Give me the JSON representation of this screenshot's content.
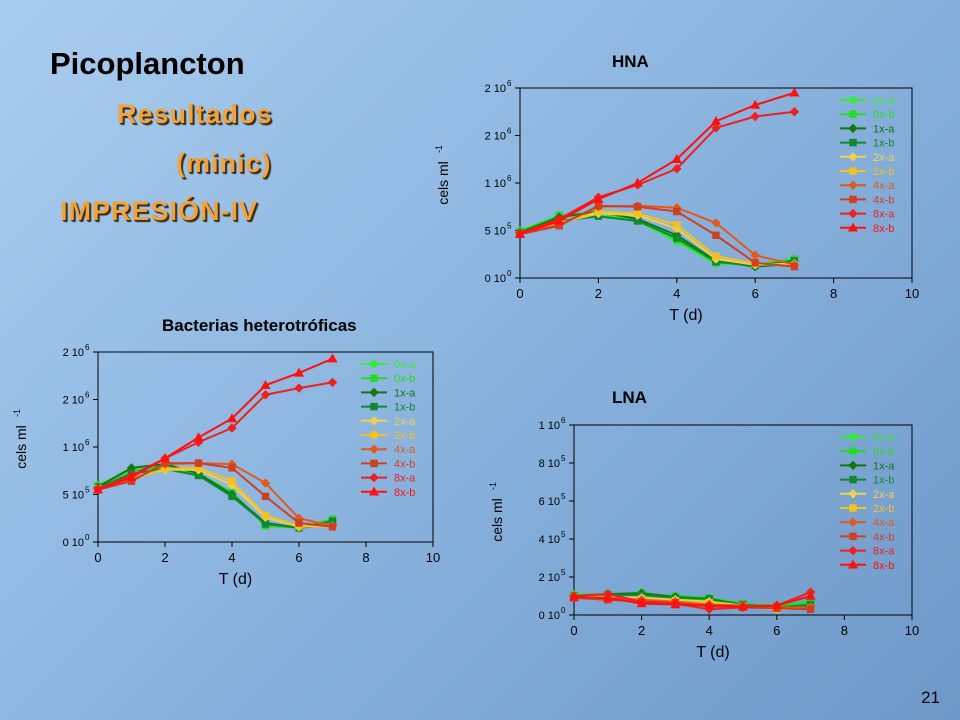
{
  "slide": {
    "title": "Picoplancton",
    "subtitle_1": "Resultados",
    "subtitle_2": "(minic)",
    "subtitle_3": "IMPRESIÓN-IV",
    "page_number": "21"
  },
  "chart_data": [
    {
      "id": "hna",
      "type": "line",
      "title": "HNA",
      "xlabel": "T (d)",
      "ylabel": "cels ml",
      "ylabel_sup": "-1",
      "xlim": [
        0,
        10
      ],
      "ylim": [
        0,
        2000000
      ],
      "xticks": [
        0,
        2,
        4,
        6,
        8,
        10
      ],
      "yticks": [
        {
          "v": 0,
          "m": "0 10",
          "e": "0"
        },
        {
          "v": 500000,
          "m": "5 10",
          "e": "5"
        },
        {
          "v": 1000000,
          "m": "1 10",
          "e": "6"
        },
        {
          "v": 1500000,
          "m": "2 10",
          "e": "6"
        },
        {
          "v": 2000000,
          "m": "2 10",
          "e": "6"
        }
      ],
      "legend_position": "top-right",
      "series": [
        {
          "name": "0x-a",
          "color": "#33ee33",
          "marker": "circle",
          "x": [
            0,
            1,
            2,
            3,
            4,
            5,
            6,
            7
          ],
          "y": [
            500000,
            650000,
            680000,
            600000,
            380000,
            150000,
            150000,
            160000
          ]
        },
        {
          "name": "0x-b",
          "color": "#22dd22",
          "marker": "square",
          "x": [
            0,
            1,
            2,
            3,
            4,
            5,
            6,
            7
          ],
          "y": [
            490000,
            660000,
            690000,
            620000,
            400000,
            160000,
            140000,
            200000
          ]
        },
        {
          "name": "1x-a",
          "color": "#117711",
          "marker": "diamond",
          "x": [
            0,
            1,
            2,
            3,
            4,
            5,
            6,
            7
          ],
          "y": [
            480000,
            640000,
            700000,
            620000,
            450000,
            180000,
            120000,
            150000
          ]
        },
        {
          "name": "1x-b",
          "color": "#118833",
          "marker": "square",
          "x": [
            0,
            1,
            2,
            3,
            4,
            5,
            6,
            7
          ],
          "y": [
            470000,
            600000,
            650000,
            600000,
            420000,
            170000,
            130000,
            180000
          ]
        },
        {
          "name": "2x-a",
          "color": "#f0d050",
          "marker": "diamond",
          "x": [
            0,
            1,
            2,
            3,
            4,
            5,
            6,
            7
          ],
          "y": [
            470000,
            580000,
            680000,
            660000,
            520000,
            200000,
            140000,
            150000
          ]
        },
        {
          "name": "2x-b",
          "color": "#f5c020",
          "marker": "square",
          "x": [
            0,
            1,
            2,
            3,
            4,
            5,
            6,
            7
          ],
          "y": [
            460000,
            570000,
            700000,
            680000,
            560000,
            230000,
            150000,
            130000
          ]
        },
        {
          "name": "4x-a",
          "color": "#e05a20",
          "marker": "diamond",
          "x": [
            0,
            1,
            2,
            3,
            4,
            5,
            6,
            7
          ],
          "y": [
            470000,
            560000,
            750000,
            760000,
            740000,
            580000,
            240000,
            140000
          ]
        },
        {
          "name": "4x-b",
          "color": "#d04020",
          "marker": "square",
          "x": [
            0,
            1,
            2,
            3,
            4,
            5,
            6,
            7
          ],
          "y": [
            460000,
            550000,
            760000,
            750000,
            700000,
            450000,
            160000,
            120000
          ]
        },
        {
          "name": "8x-a",
          "color": "#ee2020",
          "marker": "diamond",
          "x": [
            0,
            1,
            2,
            3,
            4,
            5,
            6,
            7
          ],
          "y": [
            470000,
            620000,
            850000,
            980000,
            1150000,
            1580000,
            1700000,
            1750000
          ]
        },
        {
          "name": "8x-b",
          "color": "#ff1010",
          "marker": "triangle",
          "x": [
            0,
            1,
            2,
            3,
            4,
            5,
            6,
            7
          ],
          "y": [
            460000,
            600000,
            830000,
            1000000,
            1250000,
            1650000,
            1820000,
            1950000
          ]
        }
      ]
    },
    {
      "id": "bact",
      "type": "line",
      "title": "Bacterias heterotróficas",
      "xlabel": "T (d)",
      "ylabel": "cels ml",
      "ylabel_sup": "-1",
      "xlim": [
        0,
        10
      ],
      "ylim": [
        0,
        2000000
      ],
      "xticks": [
        0,
        2,
        4,
        6,
        8,
        10
      ],
      "yticks": [
        {
          "v": 0,
          "m": "0 10",
          "e": "0"
        },
        {
          "v": 500000,
          "m": "5 10",
          "e": "5"
        },
        {
          "v": 1000000,
          "m": "1 10",
          "e": "6"
        },
        {
          "v": 1500000,
          "m": "2 10",
          "e": "6"
        },
        {
          "v": 2000000,
          "m": "2 10",
          "e": "6"
        }
      ],
      "legend_position": "top-right",
      "series": [
        {
          "name": "0x-a",
          "color": "#33ee33",
          "marker": "circle",
          "x": [
            0,
            1,
            2,
            3,
            4,
            5,
            6,
            7
          ],
          "y": [
            600000,
            760000,
            780000,
            700000,
            500000,
            180000,
            160000,
            200000
          ]
        },
        {
          "name": "0x-b",
          "color": "#22dd22",
          "marker": "square",
          "x": [
            0,
            1,
            2,
            3,
            4,
            5,
            6,
            7
          ],
          "y": [
            590000,
            750000,
            800000,
            720000,
            520000,
            170000,
            150000,
            240000
          ]
        },
        {
          "name": "1x-a",
          "color": "#117711",
          "marker": "diamond",
          "x": [
            0,
            1,
            2,
            3,
            4,
            5,
            6,
            7
          ],
          "y": [
            580000,
            780000,
            820000,
            720000,
            500000,
            200000,
            150000,
            180000
          ]
        },
        {
          "name": "1x-b",
          "color": "#118833",
          "marker": "square",
          "x": [
            0,
            1,
            2,
            3,
            4,
            5,
            6,
            7
          ],
          "y": [
            570000,
            720000,
            770000,
            700000,
            480000,
            190000,
            150000,
            220000
          ]
        },
        {
          "name": "2x-a",
          "color": "#f0d050",
          "marker": "diamond",
          "x": [
            0,
            1,
            2,
            3,
            4,
            5,
            6,
            7
          ],
          "y": [
            560000,
            680000,
            760000,
            760000,
            600000,
            260000,
            160000,
            170000
          ]
        },
        {
          "name": "2x-b",
          "color": "#f5c020",
          "marker": "square",
          "x": [
            0,
            1,
            2,
            3,
            4,
            5,
            6,
            7
          ],
          "y": [
            560000,
            660000,
            770000,
            780000,
            640000,
            280000,
            170000,
            160000
          ]
        },
        {
          "name": "4x-a",
          "color": "#e05a20",
          "marker": "diamond",
          "x": [
            0,
            1,
            2,
            3,
            4,
            5,
            6,
            7
          ],
          "y": [
            560000,
            650000,
            820000,
            830000,
            820000,
            620000,
            250000,
            170000
          ]
        },
        {
          "name": "4x-b",
          "color": "#d04020",
          "marker": "square",
          "x": [
            0,
            1,
            2,
            3,
            4,
            5,
            6,
            7
          ],
          "y": [
            550000,
            640000,
            830000,
            830000,
            780000,
            480000,
            200000,
            160000
          ]
        },
        {
          "name": "8x-a",
          "color": "#ee2020",
          "marker": "diamond",
          "x": [
            0,
            1,
            2,
            3,
            4,
            5,
            6,
            7
          ],
          "y": [
            560000,
            700000,
            880000,
            1050000,
            1200000,
            1550000,
            1620000,
            1680000
          ]
        },
        {
          "name": "8x-b",
          "color": "#ff1010",
          "marker": "triangle",
          "x": [
            0,
            1,
            2,
            3,
            4,
            5,
            6,
            7
          ],
          "y": [
            550000,
            680000,
            880000,
            1100000,
            1300000,
            1650000,
            1780000,
            1930000
          ]
        }
      ]
    },
    {
      "id": "lna",
      "type": "line",
      "title": "LNA",
      "xlabel": "T (d)",
      "ylabel": "cels ml",
      "ylabel_sup": "-1",
      "xlim": [
        0,
        10
      ],
      "ylim": [
        0,
        1000000
      ],
      "xticks": [
        0,
        2,
        4,
        6,
        8,
        10
      ],
      "yticks": [
        {
          "v": 0,
          "m": "0 10",
          "e": "0"
        },
        {
          "v": 200000,
          "m": "2 10",
          "e": "5"
        },
        {
          "v": 400000,
          "m": "4 10",
          "e": "5"
        },
        {
          "v": 600000,
          "m": "6 10",
          "e": "5"
        },
        {
          "v": 800000,
          "m": "8 10",
          "e": "5"
        },
        {
          "v": 1000000,
          "m": "1 10",
          "e": "6"
        }
      ],
      "legend_position": "top-right",
      "series": [
        {
          "name": "0x-a",
          "color": "#33ee33",
          "marker": "circle",
          "x": [
            0,
            1,
            2,
            3,
            4,
            5,
            6,
            7
          ],
          "y": [
            110000,
            100000,
            120000,
            90000,
            80000,
            50000,
            40000,
            60000
          ]
        },
        {
          "name": "0x-b",
          "color": "#22dd22",
          "marker": "square",
          "x": [
            0,
            1,
            2,
            3,
            4,
            5,
            6,
            7
          ],
          "y": [
            105000,
            110000,
            110000,
            100000,
            90000,
            60000,
            50000,
            70000
          ]
        },
        {
          "name": "1x-a",
          "color": "#117711",
          "marker": "diamond",
          "x": [
            0,
            1,
            2,
            3,
            4,
            5,
            6,
            7
          ],
          "y": [
            100000,
            110000,
            115000,
            95000,
            85000,
            50000,
            30000,
            50000
          ]
        },
        {
          "name": "1x-b",
          "color": "#118833",
          "marker": "square",
          "x": [
            0,
            1,
            2,
            3,
            4,
            5,
            6,
            7
          ],
          "y": [
            100000,
            105000,
            105000,
            90000,
            85000,
            55000,
            40000,
            55000
          ]
        },
        {
          "name": "2x-a",
          "color": "#f0d050",
          "marker": "diamond",
          "x": [
            0,
            1,
            2,
            3,
            4,
            5,
            6,
            7
          ],
          "y": [
            100000,
            95000,
            90000,
            80000,
            70000,
            50000,
            30000,
            40000
          ]
        },
        {
          "name": "2x-b",
          "color": "#f5c020",
          "marker": "square",
          "x": [
            0,
            1,
            2,
            3,
            4,
            5,
            6,
            7
          ],
          "y": [
            95000,
            90000,
            85000,
            75000,
            65000,
            45000,
            30000,
            35000
          ]
        },
        {
          "name": "4x-a",
          "color": "#e05a20",
          "marker": "diamond",
          "x": [
            0,
            1,
            2,
            3,
            4,
            5,
            6,
            7
          ],
          "y": [
            95000,
            90000,
            80000,
            70000,
            55000,
            50000,
            40000,
            40000
          ]
        },
        {
          "name": "4x-b",
          "color": "#d04020",
          "marker": "square",
          "x": [
            0,
            1,
            2,
            3,
            4,
            5,
            6,
            7
          ],
          "y": [
            90000,
            80000,
            70000,
            65000,
            45000,
            40000,
            35000,
            30000
          ]
        },
        {
          "name": "8x-a",
          "color": "#ee2020",
          "marker": "diamond",
          "x": [
            0,
            1,
            2,
            3,
            4,
            5,
            6,
            7
          ],
          "y": [
            100000,
            110000,
            70000,
            60000,
            30000,
            40000,
            50000,
            120000
          ]
        },
        {
          "name": "8x-b",
          "color": "#ff1010",
          "marker": "triangle",
          "x": [
            0,
            1,
            2,
            3,
            4,
            5,
            6,
            7
          ],
          "y": [
            95000,
            90000,
            60000,
            55000,
            50000,
            45000,
            50000,
            100000
          ]
        }
      ]
    }
  ]
}
